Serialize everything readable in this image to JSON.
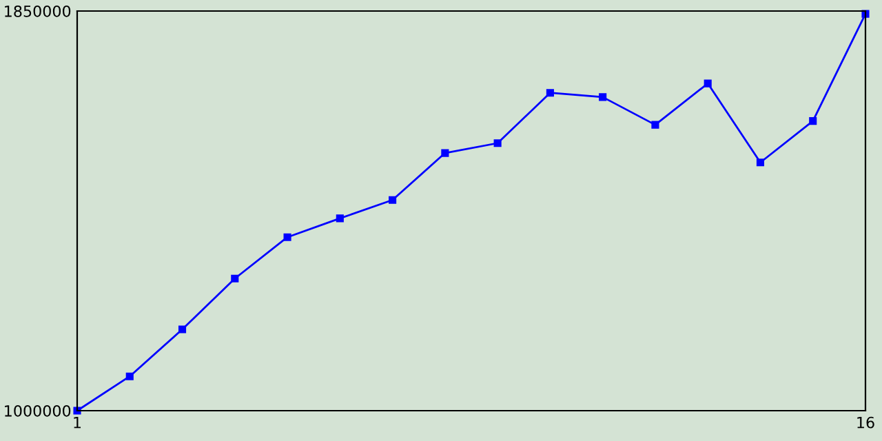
{
  "chart_data": {
    "type": "line",
    "x": [
      1,
      2,
      3,
      4,
      5,
      6,
      7,
      8,
      9,
      10,
      11,
      12,
      13,
      14,
      15,
      16
    ],
    "series": [
      {
        "color": "#0000ff",
        "values": [
          1000000,
          1073000,
          1173000,
          1281000,
          1369000,
          1409000,
          1448000,
          1548000,
          1569000,
          1676000,
          1667000,
          1608000,
          1696000,
          1528000,
          1616000,
          1844000
        ]
      }
    ],
    "xlim": [
      1,
      16
    ],
    "xticks": [
      1,
      16
    ],
    "ylim": [
      1000000,
      1850000
    ],
    "yticks": [
      1000000,
      1850000
    ],
    "grid": false,
    "marker": "square",
    "line_style": "solid"
  }
}
